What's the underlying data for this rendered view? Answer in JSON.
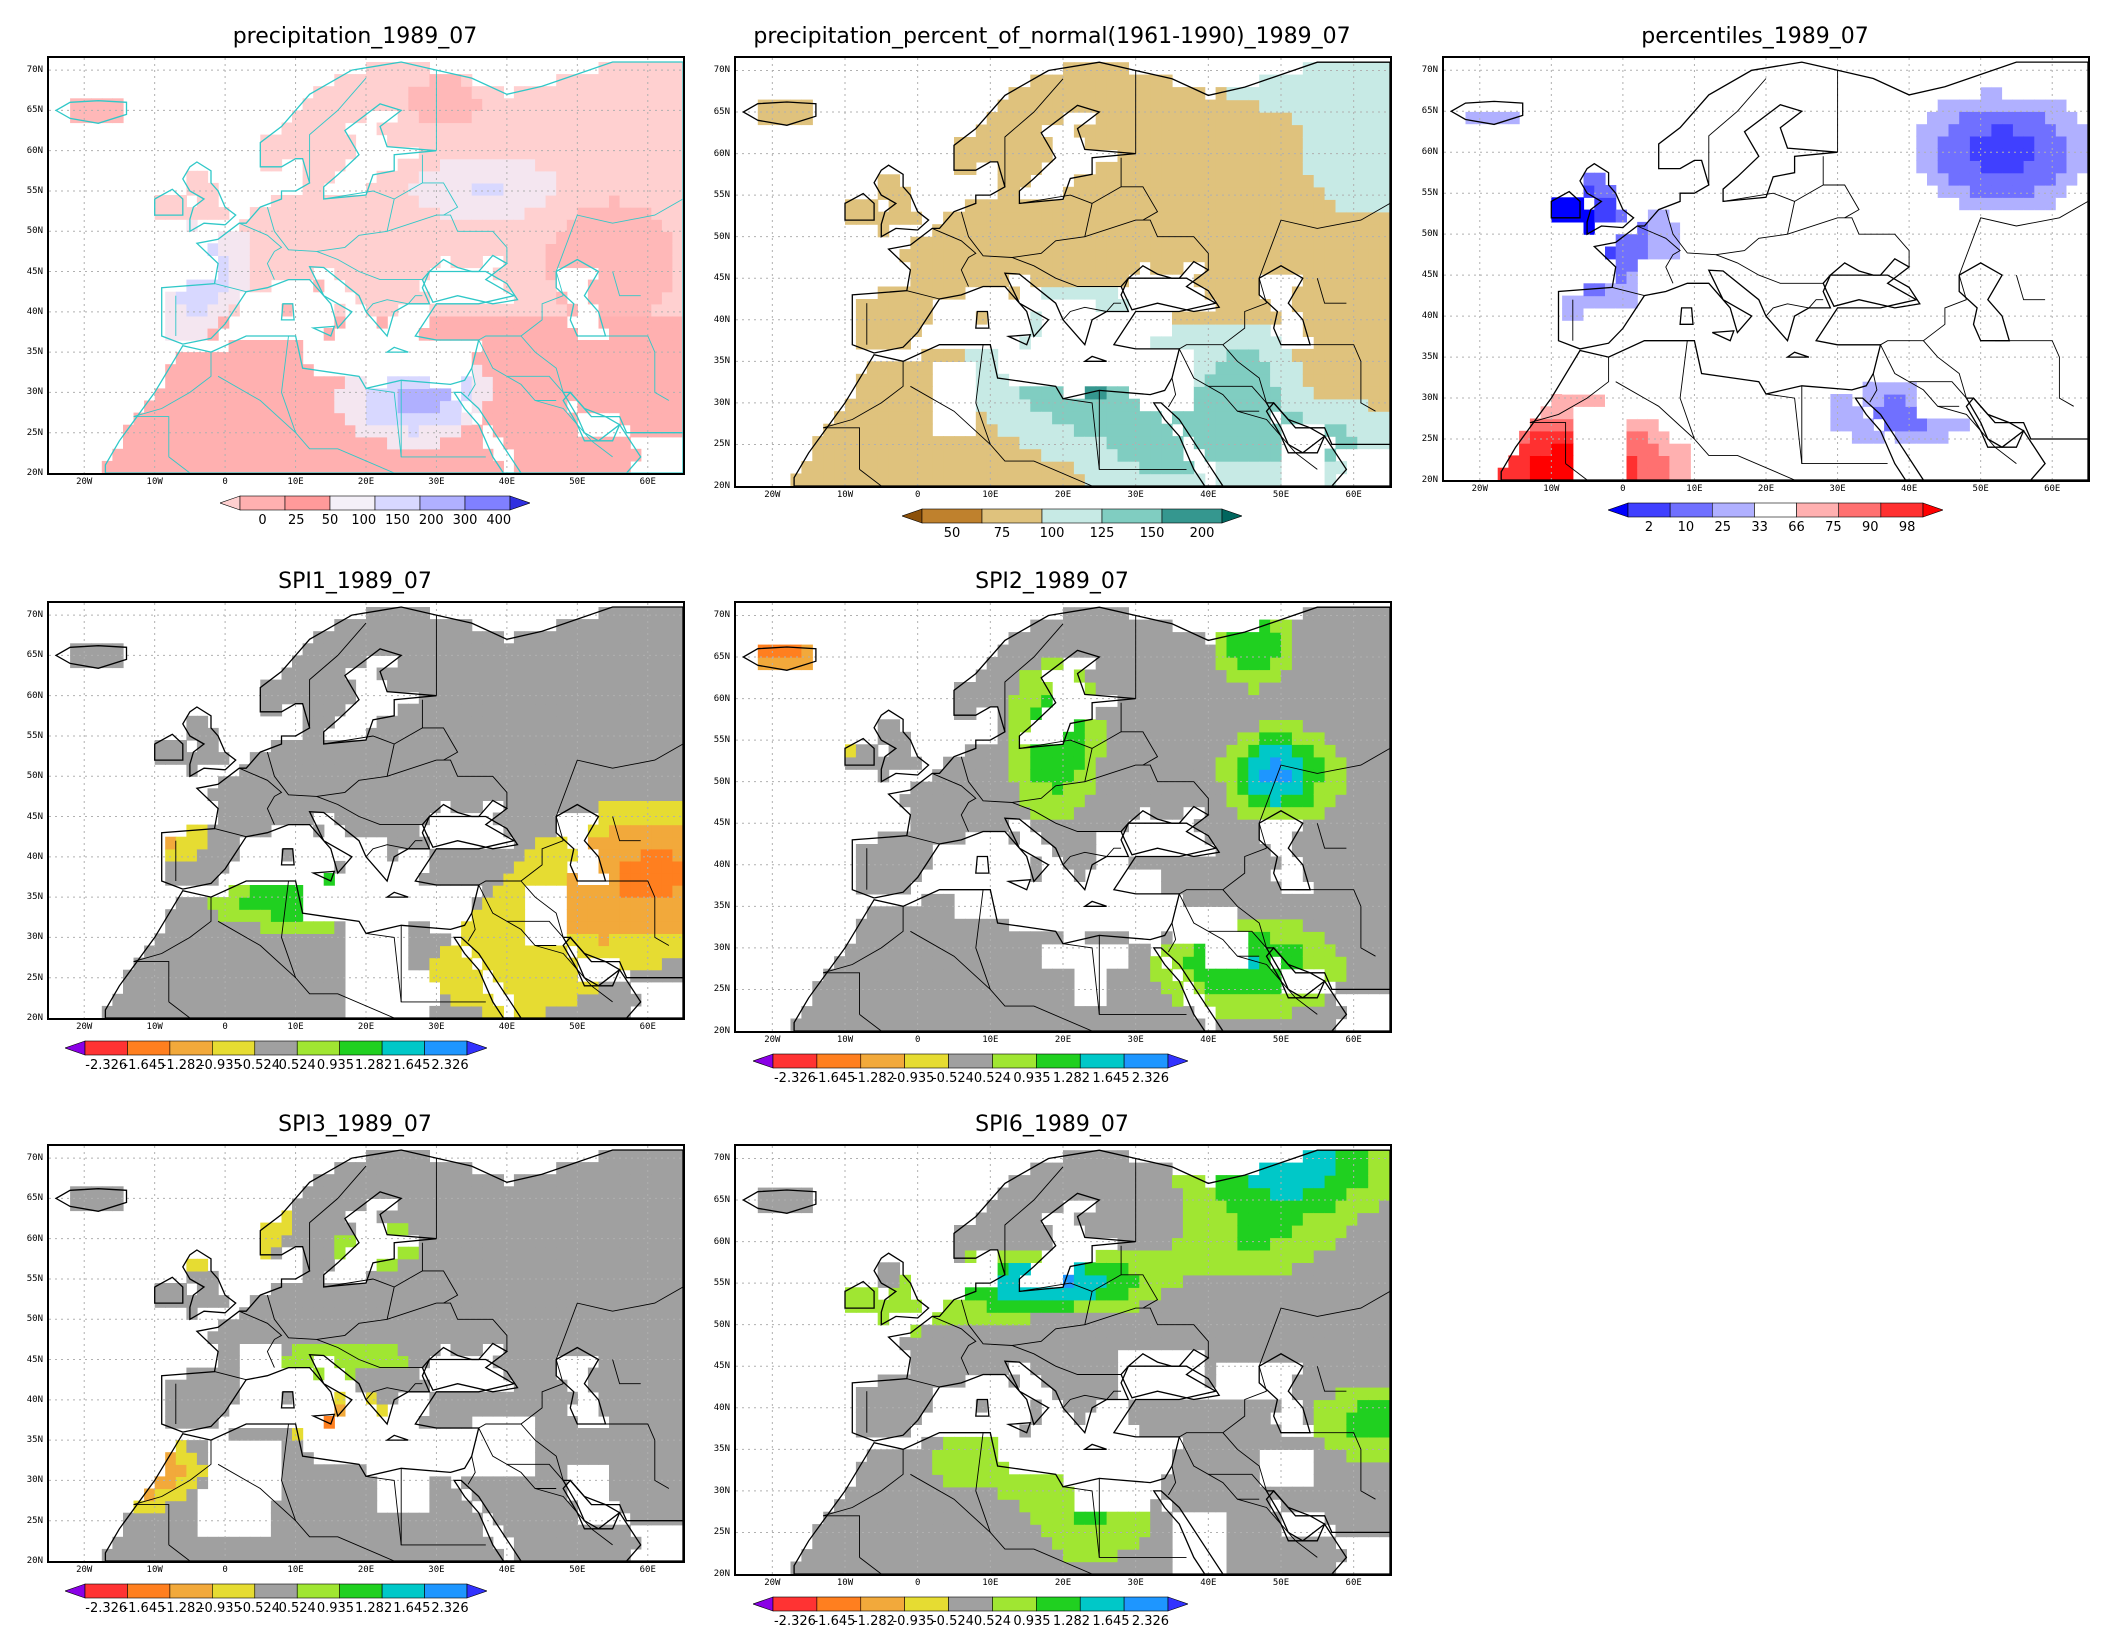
{
  "lat_ticks": [
    "70N",
    "65N",
    "60N",
    "55N",
    "50N",
    "45N",
    "40N",
    "35N",
    "30N",
    "25N",
    "20N"
  ],
  "lon_ticks": [
    "20W",
    "10W",
    "0",
    "10E",
    "20E",
    "30E",
    "40E",
    "50E",
    "60E"
  ],
  "panels": [
    {
      "id": "precip",
      "title": "precipitation_1989_07",
      "palette": "precip",
      "colorbar": {
        "labels": [
          "0",
          "25",
          "50",
          "100",
          "150",
          "200",
          "300",
          "400"
        ],
        "colors": [
          "#ffd0d0",
          "#ffb0b0",
          "#ff9a9a",
          "#f4f0f8",
          "#d8d8ff",
          "#b0b0ff",
          "#8080ff",
          "#3030e0"
        ]
      }
    },
    {
      "id": "pct-normal",
      "title": "precipitation_percent_of_normal(1961-1990)_1989_07",
      "palette": "brbg",
      "colorbar": {
        "labels": [
          "50",
          "75",
          "100",
          "125",
          "150",
          "200"
        ],
        "colors": [
          "#8c510a",
          "#bf812d",
          "#dfc27d",
          "#c7eae5",
          "#80cdc1",
          "#35978f",
          "#01665e"
        ]
      }
    },
    {
      "id": "percentiles",
      "title": "percentiles_1989_07",
      "palette": "bwr",
      "colorbar": {
        "labels": [
          "2",
          "10",
          "25",
          "33",
          "66",
          "75",
          "90",
          "98"
        ],
        "colors": [
          "#0000ff",
          "#4040ff",
          "#7070ff",
          "#b0b0ff",
          "#ffffff",
          "#ffb0b0",
          "#ff7070",
          "#ff3030",
          "#ff0000"
        ]
      }
    },
    {
      "id": "spi1",
      "title": "SPI1_1989_07",
      "palette": "spi",
      "colorbar": {
        "labels": [
          "-2.326",
          "-1.645",
          "-1.282",
          "-0.935",
          "-0.524",
          "0.524",
          "0.935",
          "1.282",
          "1.645",
          "2.326"
        ],
        "colors": [
          "#8a00e6",
          "#ff3333",
          "#ff7f1f",
          "#f2a93b",
          "#e6dc32",
          "#a0a0a0",
          "#a0e632",
          "#20d020",
          "#00c8c8",
          "#1e96ff",
          "#3232ff"
        ]
      }
    },
    {
      "id": "spi2",
      "title": "SPI2_1989_07",
      "palette": "spi",
      "colorbar": {
        "labels": [
          "-2.326",
          "-1.645",
          "-1.282",
          "-0.935",
          "-0.524",
          "0.524",
          "0.935",
          "1.282",
          "1.645",
          "2.326"
        ],
        "colors": [
          "#8a00e6",
          "#ff3333",
          "#ff7f1f",
          "#f2a93b",
          "#e6dc32",
          "#a0a0a0",
          "#a0e632",
          "#20d020",
          "#00c8c8",
          "#1e96ff",
          "#3232ff"
        ]
      }
    },
    {
      "id": "spi3",
      "title": "SPI3_1989_07",
      "palette": "spi",
      "colorbar": {
        "labels": [
          "-2.326",
          "-1.645",
          "-1.282",
          "-0.935",
          "-0.524",
          "0.524",
          "0.935",
          "1.282",
          "1.645",
          "2.326"
        ],
        "colors": [
          "#8a00e6",
          "#ff3333",
          "#ff7f1f",
          "#f2a93b",
          "#e6dc32",
          "#a0a0a0",
          "#a0e632",
          "#20d020",
          "#00c8c8",
          "#1e96ff",
          "#3232ff"
        ]
      }
    },
    {
      "id": "spi6",
      "title": "SPI6_1989_07",
      "palette": "spi",
      "colorbar": {
        "labels": [
          "-2.326",
          "-1.645",
          "-1.282",
          "-0.935",
          "-0.524",
          "0.524",
          "0.935",
          "1.282",
          "1.645",
          "2.326"
        ],
        "colors": [
          "#8a00e6",
          "#ff3333",
          "#ff7f1f",
          "#f2a93b",
          "#e6dc32",
          "#a0a0a0",
          "#a0e632",
          "#20d020",
          "#00c8c8",
          "#1e96ff",
          "#3232ff"
        ]
      }
    }
  ]
}
